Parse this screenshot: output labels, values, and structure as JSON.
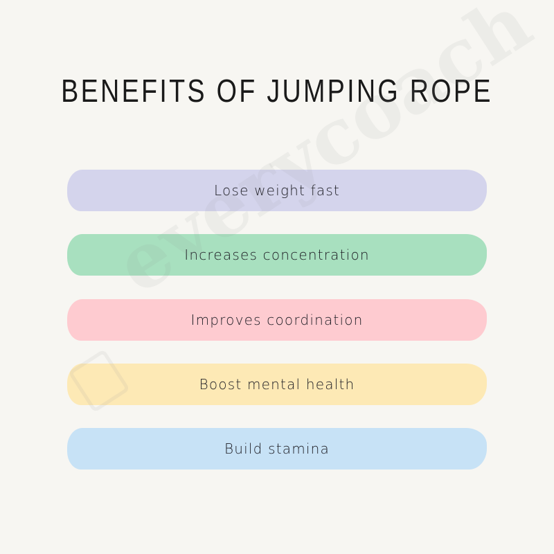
{
  "title": "BENEFITS OF JUMPING ROPE",
  "items": [
    {
      "label": "Lose weight fast",
      "color": "#d4d4ec"
    },
    {
      "label": "Increases concentration",
      "color": "#a8e0bf"
    },
    {
      "label": "Improves coordination",
      "color": "#fecbd0"
    },
    {
      "label": "Boost mental health",
      "color": "#fde9b5"
    },
    {
      "label": "Build stamina",
      "color": "#c7e2f6"
    }
  ],
  "watermark": {
    "text": "everycoach",
    "icon": "smiley-note-icon"
  }
}
